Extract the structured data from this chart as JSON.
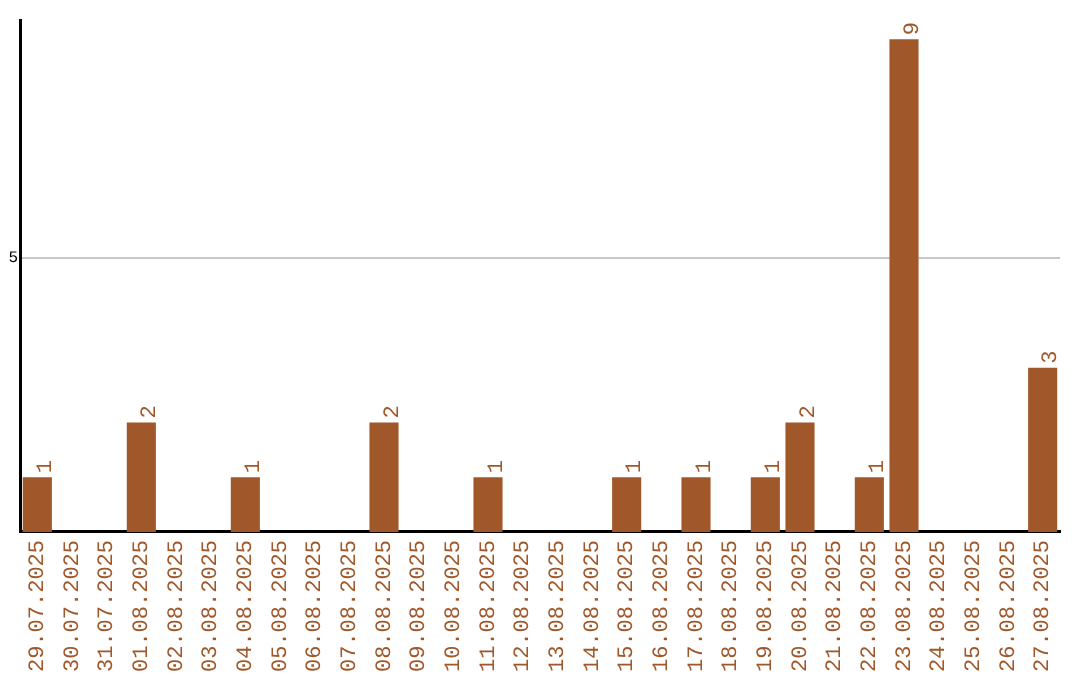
{
  "chart_data": {
    "type": "bar",
    "categories": [
      "29.07.2025",
      "30.07.2025",
      "31.07.2025",
      "01.08.2025",
      "02.08.2025",
      "03.08.2025",
      "04.08.2025",
      "05.08.2025",
      "06.08.2025",
      "07.08.2025",
      "08.08.2025",
      "09.08.2025",
      "10.08.2025",
      "11.08.2025",
      "12.08.2025",
      "13.08.2025",
      "14.08.2025",
      "15.08.2025",
      "16.08.2025",
      "17.08.2025",
      "18.08.2025",
      "19.08.2025",
      "20.08.2025",
      "21.08.2025",
      "22.08.2025",
      "23.08.2025",
      "24.08.2025",
      "25.08.2025",
      "26.08.2025",
      "27.08.2025"
    ],
    "values": [
      1,
      0,
      0,
      2,
      0,
      0,
      1,
      0,
      0,
      0,
      2,
      0,
      0,
      1,
      0,
      0,
      0,
      1,
      0,
      1,
      0,
      1,
      2,
      0,
      1,
      9,
      0,
      0,
      0,
      3
    ],
    "value_labels": [
      "1",
      null,
      null,
      "2",
      null,
      null,
      "1",
      null,
      null,
      null,
      "2",
      null,
      null,
      "1",
      null,
      null,
      null,
      "1",
      null,
      "1",
      null,
      "1",
      "2",
      null,
      "1",
      "9",
      null,
      null,
      null,
      "3"
    ],
    "color": "#a0582a",
    "ylim": [
      0,
      9.35
    ],
    "yticks": [
      5
    ],
    "grid": "y",
    "legend": false
  }
}
